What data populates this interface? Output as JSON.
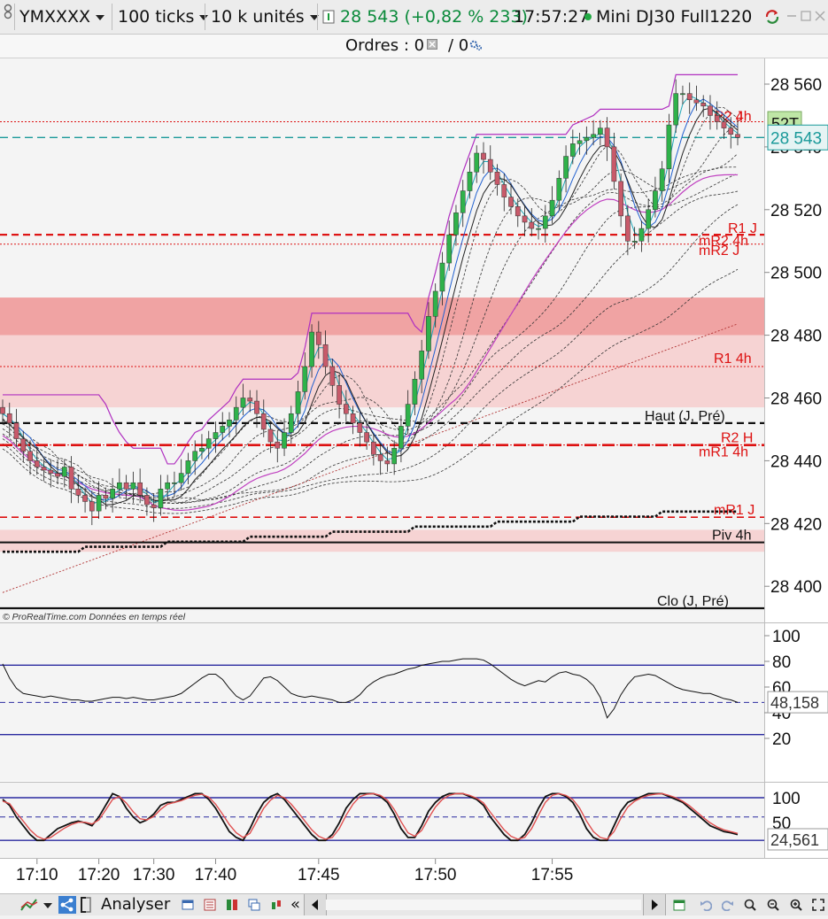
{
  "toolbar": {
    "symbol": "YMXXXX",
    "ticks": "100 ticks",
    "units": "10 k unités",
    "price_change": "28 543 (+0,82 % 233)",
    "time": "17:57:27",
    "instrument": "Mini DJ30 Full1220"
  },
  "orders": {
    "label": "Ordres : 0",
    "slash": "/ 0"
  },
  "footer": {
    "watermark": "© ProRealTime.com  Données en temps réel"
  },
  "bottom": {
    "analyze_label": "Analyser",
    "collapse": "«"
  },
  "colors": {
    "bull": "#2fb24a",
    "bear": "#c85a6a",
    "resistance": "#dd1111",
    "accent": "#1a9a9a",
    "magenta": "#c040c0"
  },
  "chart_data": [
    {
      "type": "line",
      "title": "",
      "ylim": [
        28392,
        28568
      ],
      "y_ticks": [
        "28 560",
        "28 540",
        "28 520",
        "28 500",
        "28 480",
        "28 460",
        "28 440",
        "28 420",
        "28 400"
      ],
      "current_price": "28 543",
      "timer": "52T",
      "x_ticks": [
        "17:10",
        "17:20",
        "17:30",
        "17:40",
        "17:45",
        "17:50",
        "17:55"
      ],
      "x_tick_index": [
        5,
        14,
        22,
        31,
        46,
        63,
        80
      ],
      "levels": [
        {
          "label": "R2 J",
          "value": 28548
        },
        {
          "label": "R2 4h",
          "value": 28548
        },
        {
          "label": "R1 J",
          "value": 28512
        },
        {
          "label": "mR2 4h",
          "value": 28512
        },
        {
          "label": "mR2 J",
          "value": 28509
        },
        {
          "label": "R1 4h",
          "value": 28470
        },
        {
          "label": "Haut (J, Pré)",
          "value": 28452
        },
        {
          "label": "R2 H",
          "value": 28445
        },
        {
          "label": "mR1 4h",
          "value": 28445
        },
        {
          "label": "mR1 J",
          "value": 28422
        },
        {
          "label": "Piv 4h",
          "value": 28414
        },
        {
          "label": "Clo (J, Pré)",
          "value": 28393
        }
      ],
      "zones": [
        {
          "from": 28480,
          "to": 28492
        },
        {
          "from": 28457,
          "to": 28480
        },
        {
          "from": 28411,
          "to": 28418
        }
      ],
      "close": [
        28455,
        28452,
        28447,
        28443,
        28440,
        28438,
        28437,
        28436,
        28435,
        28438,
        28431,
        28429,
        28427,
        28424,
        28429,
        28428,
        28431,
        28433,
        28431,
        28433,
        28429,
        28426,
        28425,
        28431,
        28433,
        28433,
        28436,
        28440,
        28443,
        28444,
        28447,
        28449,
        28451,
        28453,
        28457,
        28460,
        28459,
        28455,
        28450,
        28446,
        28444,
        28449,
        28455,
        28462,
        28470,
        28481,
        28477,
        28470,
        28464,
        28458,
        28455,
        28452,
        28449,
        28446,
        28442,
        28440,
        28439,
        28444,
        28451,
        28458,
        28466,
        28475,
        28486,
        28494,
        28503,
        28512,
        28519,
        28526,
        28532,
        28538,
        28536,
        28532,
        28528,
        28524,
        28521,
        28518,
        28516,
        28514,
        28514,
        28518,
        28523,
        28530,
        28537,
        28541,
        28542,
        28543,
        28544,
        28546,
        28540,
        28529,
        28518,
        28510,
        28510,
        28514,
        28520,
        28526,
        28533,
        28547,
        28557,
        28557,
        28555,
        28554,
        28553,
        28550,
        28548,
        28546,
        28544,
        28543
      ]
    },
    {
      "type": "line",
      "ylim": [
        5,
        108
      ],
      "y_ticks": [
        "100",
        "80",
        "60",
        "40",
        "20"
      ],
      "levels": [
        77,
        48,
        23
      ],
      "current": "48,158",
      "values": [
        78,
        67,
        59,
        55,
        54,
        53,
        52,
        53,
        52,
        51,
        50,
        50,
        49,
        49,
        50,
        51,
        52,
        52,
        51,
        52,
        51,
        50,
        50,
        51,
        52,
        53,
        55,
        59,
        63,
        67,
        70,
        70,
        66,
        59,
        53,
        50,
        53,
        60,
        67,
        68,
        65,
        60,
        55,
        53,
        52,
        53,
        52,
        51,
        50,
        48,
        48,
        50,
        54,
        60,
        64,
        67,
        69,
        70,
        72,
        74,
        75,
        77,
        78,
        79,
        80,
        80,
        81,
        82,
        82,
        82,
        81,
        78,
        74,
        70,
        66,
        63,
        61,
        63,
        65,
        64,
        68,
        71,
        72,
        70,
        69,
        66,
        61,
        52,
        36,
        43,
        54,
        62,
        68,
        69,
        70,
        69,
        66,
        63,
        60,
        58,
        57,
        56,
        55,
        55,
        53,
        51,
        50,
        48
      ]
    },
    {
      "type": "line",
      "ylim": [
        -15,
        115
      ],
      "y_ticks": [
        "100",
        "50"
      ],
      "levels": [
        88,
        55,
        15
      ],
      "current": "24,561",
      "series": [
        {
          "values": [
            85,
            75,
            55,
            40,
            25,
            15,
            15,
            25,
            35,
            40,
            45,
            48,
            45,
            40,
            55,
            75,
            95,
            90,
            70,
            55,
            45,
            50,
            60,
            75,
            80,
            80,
            85,
            90,
            95,
            95,
            85,
            70,
            50,
            30,
            20,
            15,
            35,
            60,
            80,
            90,
            95,
            85,
            70,
            55,
            40,
            25,
            15,
            15,
            25,
            45,
            70,
            85,
            95,
            95,
            95,
            90,
            80,
            60,
            35,
            20,
            20,
            40,
            65,
            80,
            90,
            95,
            95,
            95,
            90,
            85,
            75,
            55,
            40,
            25,
            15,
            15,
            25,
            45,
            70,
            90,
            95,
            95,
            90,
            80,
            60,
            35,
            20,
            15,
            15,
            40,
            65,
            80,
            85,
            90,
            95,
            95,
            95,
            90,
            85,
            80,
            70,
            60,
            50,
            40,
            35,
            30,
            28,
            25
          ]
        },
        {
          "values": [
            82,
            78,
            62,
            48,
            33,
            22,
            17,
            20,
            28,
            36,
            42,
            46,
            46,
            43,
            50,
            67,
            85,
            90,
            79,
            64,
            52,
            50,
            56,
            68,
            77,
            80,
            83,
            88,
            92,
            94,
            89,
            77,
            60,
            42,
            28,
            20,
            27,
            48,
            70,
            84,
            92,
            88,
            77,
            63,
            48,
            33,
            22,
            17,
            20,
            35,
            58,
            77,
            90,
            94,
            95,
            92,
            84,
            68,
            47,
            28,
            22,
            32,
            53,
            72,
            85,
            92,
            95,
            95,
            92,
            87,
            79,
            63,
            48,
            33,
            22,
            17,
            20,
            35,
            58,
            80,
            92,
            95,
            92,
            85,
            70,
            48,
            30,
            20,
            17,
            30,
            53,
            72,
            82,
            88,
            92,
            94,
            95,
            92,
            88,
            82,
            74,
            64,
            54,
            45,
            38,
            33,
            30,
            27
          ]
        }
      ]
    }
  ]
}
